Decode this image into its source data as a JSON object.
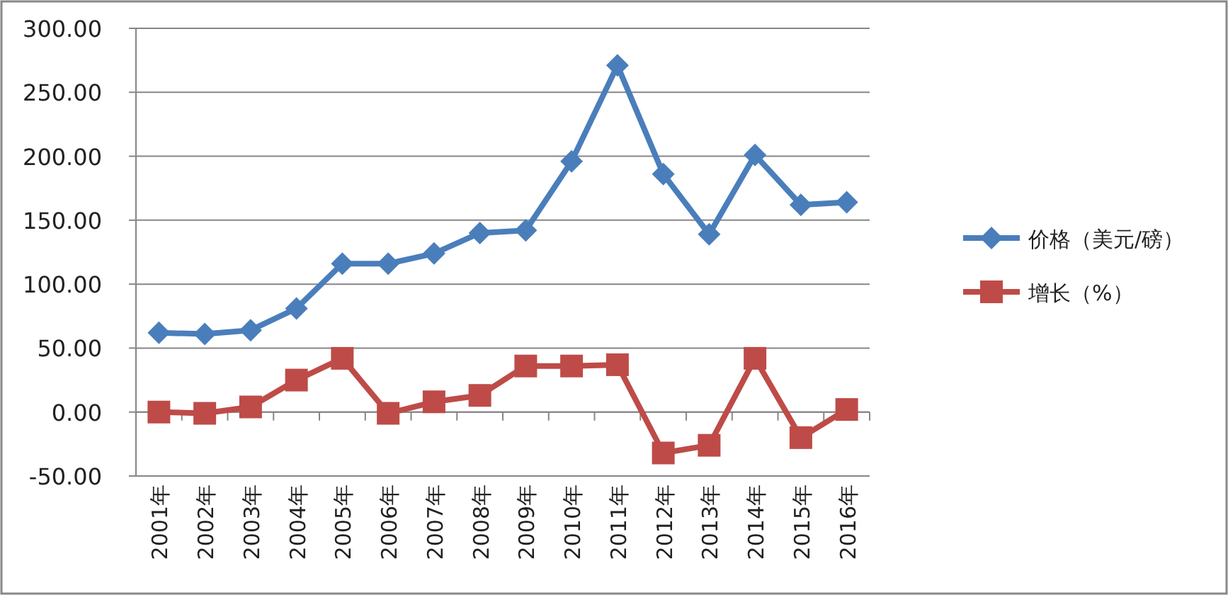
{
  "chart_data": {
    "type": "line",
    "categories": [
      "2001年",
      "2002年",
      "2003年",
      "2004年",
      "2005年",
      "2006年",
      "2007年",
      "2008年",
      "2009年",
      "2010年",
      "2011年",
      "2012年",
      "2013年",
      "2014年",
      "2015年",
      "2016年"
    ],
    "series": [
      {
        "name": "价格（美元/磅）",
        "color": "#4a7ebb",
        "marker": "diamond",
        "values": [
          62,
          61,
          64,
          81,
          116,
          116,
          124,
          140,
          142,
          196,
          271,
          186,
          139,
          201,
          162,
          164
        ]
      },
      {
        "name": "增长（%）",
        "color": "#be4b48",
        "marker": "square",
        "values": [
          0,
          -1,
          4,
          25,
          42,
          -1,
          8,
          13,
          36,
          36,
          37,
          -32,
          -26,
          42,
          -20,
          2
        ]
      }
    ],
    "ylim": [
      -50,
      300
    ],
    "yticks": [
      {
        "value": -50,
        "label": "-50.00"
      },
      {
        "value": 0,
        "label": "0.00"
      },
      {
        "value": 50,
        "label": "50.00"
      },
      {
        "value": 100,
        "label": "100.00"
      },
      {
        "value": 150,
        "label": "150.00"
      },
      {
        "value": 200,
        "label": "200.00"
      },
      {
        "value": 250,
        "label": "250.00"
      },
      {
        "value": 300,
        "label": "300.00"
      }
    ],
    "grid": "y",
    "legend": "right"
  }
}
